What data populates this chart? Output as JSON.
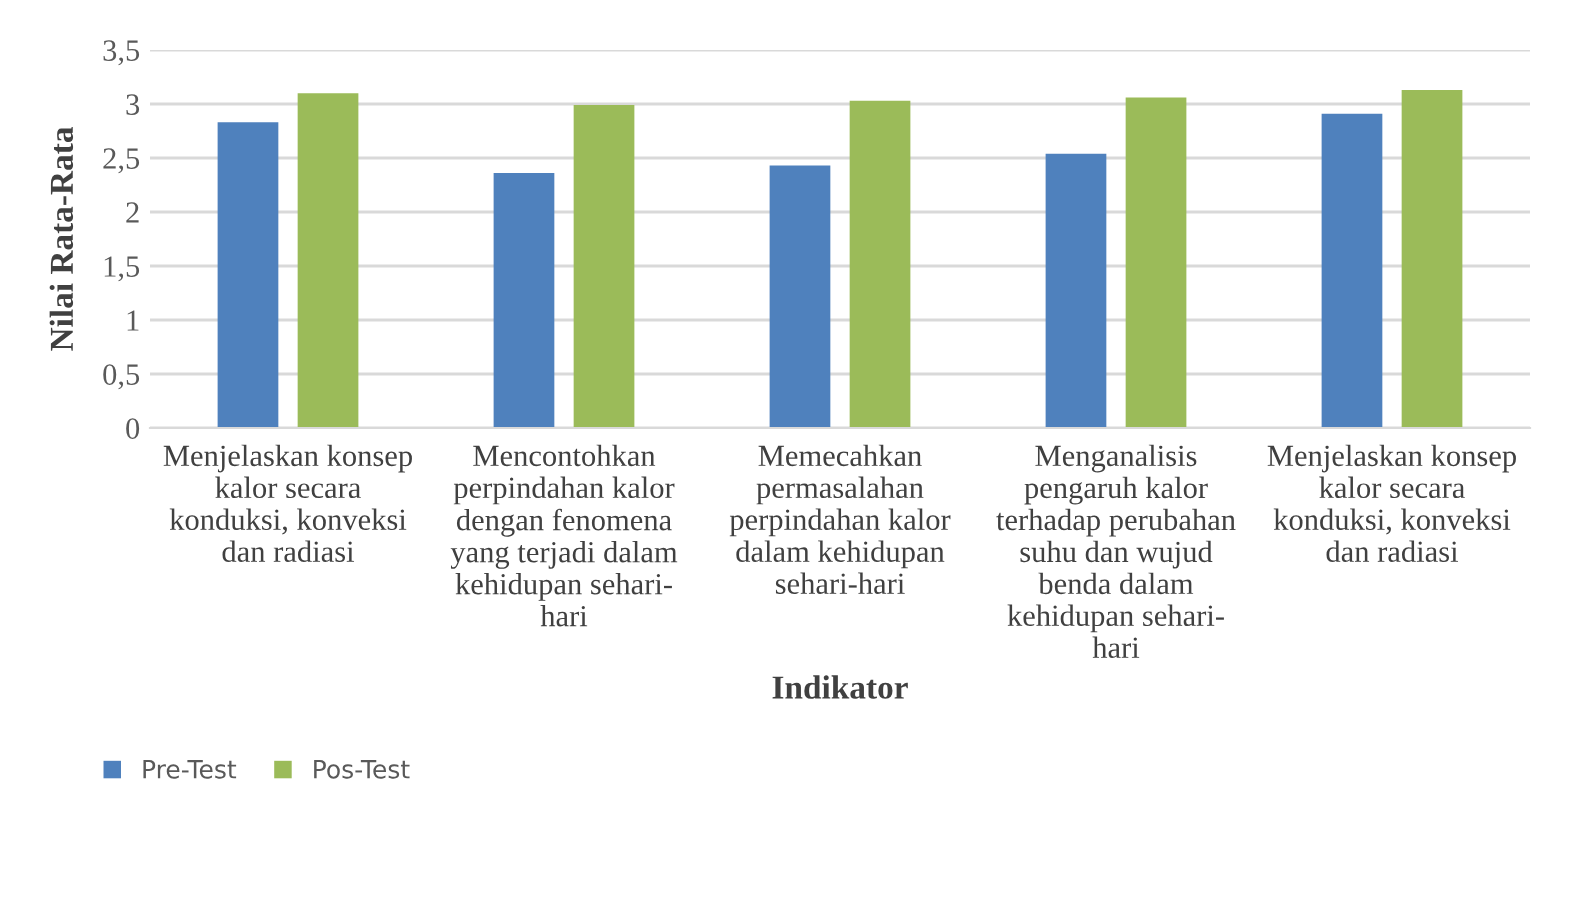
{
  "chart_data": {
    "type": "bar",
    "xlabel": "Indikator",
    "ylabel": "Nilai Rata-Rata",
    "categories": [
      "Menjelaskan konsep\nkalor secara\nkonduksi, konveksi\ndan radiasi",
      "Mencontohkan\nperpindahan kalor\ndengan fenomena\nyang terjadi dalam\nkehidupan sehari-\nhari",
      "Memecahkan\npermasalahan\nperpindahan kalor\ndalam kehidupan\nsehari-hari",
      "Menganalisis\npengaruh kalor\nterhadap perubahan\nsuhu dan wujud\nbenda dalam\nkehidupan sehari-\nhari",
      "Menjelaskan konsep\nkalor secara\nkonduksi, konveksi\ndan radiasi"
    ],
    "series": [
      {
        "name": "Pre-Test",
        "color": "#4f81bd",
        "values": [
          2.83,
          2.36,
          2.43,
          2.54,
          2.91
        ]
      },
      {
        "name": "Pos-Test",
        "color": "#9bbb59",
        "values": [
          3.1,
          2.99,
          3.03,
          3.06,
          3.13
        ]
      }
    ],
    "ylim": [
      0,
      3.5
    ],
    "yticks": [
      0,
      {
        "value": 0.5,
        "label": "0,5"
      },
      1,
      {
        "value": 1.5,
        "label": "1,5"
      },
      2,
      {
        "value": 2.5,
        "label": "2,5"
      },
      3,
      {
        "value": 3.5,
        "label": "3,5"
      }
    ],
    "grid": "y",
    "legend": "bottom left"
  }
}
